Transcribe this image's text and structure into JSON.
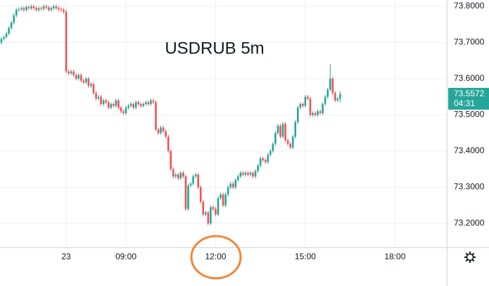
{
  "chart_data": {
    "type": "candlestick",
    "title": "USDRUB 5m",
    "open": [
      73.7,
      73.71,
      73.715,
      73.725,
      73.74,
      73.755,
      73.775,
      73.79,
      73.792,
      73.795,
      73.79,
      73.798,
      73.795,
      73.8,
      73.795,
      73.79,
      73.795,
      73.793,
      73.8,
      73.797,
      73.79,
      73.795,
      73.8,
      73.795,
      73.792,
      73.79,
      73.785,
      73.62,
      73.615,
      73.62,
      73.61,
      73.6,
      73.61,
      73.595,
      73.59,
      73.6,
      73.58,
      73.585,
      73.56,
      73.545,
      73.55,
      73.53,
      73.54,
      73.535,
      73.52,
      73.53,
      73.525,
      73.54,
      73.52,
      73.51,
      73.505,
      73.52,
      73.525,
      73.53,
      73.52,
      73.535,
      73.53,
      73.525,
      73.53,
      73.535,
      73.53,
      73.54,
      73.535,
      73.46,
      73.45,
      73.465,
      73.455,
      73.44,
      73.4,
      73.35,
      73.33,
      73.335,
      73.325,
      73.34,
      73.33,
      73.24,
      73.305,
      73.31,
      73.33,
      73.335,
      73.3,
      73.26,
      73.225,
      73.23,
      73.2,
      73.245,
      73.24,
      73.225,
      73.27,
      73.28,
      73.25,
      73.28,
      73.3,
      73.31,
      73.3,
      73.32,
      73.33,
      73.34,
      73.335,
      73.34,
      73.335,
      73.34,
      73.33,
      73.345,
      73.36,
      73.38,
      73.375,
      73.37,
      73.39,
      73.4,
      73.42,
      73.45,
      73.47,
      73.44,
      73.475,
      73.43,
      73.42,
      73.41,
      73.44,
      73.48,
      73.52,
      73.53,
      73.525,
      73.55,
      73.545,
      73.5,
      73.505,
      73.5,
      73.51,
      73.505,
      73.53,
      73.55,
      73.57,
      73.6,
      73.56,
      73.54,
      73.545
    ],
    "high": [
      73.715,
      73.72,
      73.73,
      73.745,
      73.76,
      73.78,
      73.795,
      73.797,
      73.8,
      73.8,
      73.803,
      73.803,
      73.805,
      73.805,
      73.8,
      73.8,
      73.8,
      73.805,
      73.805,
      73.802,
      73.8,
      73.805,
      73.805,
      73.8,
      73.797,
      73.795,
      73.79,
      73.625,
      73.625,
      73.625,
      73.615,
      73.615,
      73.615,
      73.6,
      73.605,
      73.605,
      73.59,
      73.59,
      73.565,
      73.555,
      73.555,
      73.545,
      73.545,
      73.54,
      73.535,
      73.535,
      73.545,
      73.545,
      73.525,
      73.515,
      73.525,
      73.53,
      73.535,
      73.535,
      73.54,
      73.54,
      73.535,
      73.535,
      73.54,
      73.54,
      73.545,
      73.545,
      73.54,
      73.465,
      73.47,
      73.47,
      73.46,
      73.445,
      73.405,
      73.355,
      73.34,
      73.34,
      73.345,
      73.345,
      73.335,
      73.31,
      73.315,
      73.335,
      73.34,
      73.34,
      73.305,
      73.265,
      73.235,
      73.235,
      73.25,
      73.25,
      73.245,
      73.275,
      73.285,
      73.285,
      73.285,
      73.305,
      73.315,
      73.315,
      73.325,
      73.335,
      73.345,
      73.345,
      73.345,
      73.345,
      73.345,
      73.345,
      73.35,
      73.365,
      73.385,
      73.385,
      73.38,
      73.395,
      73.405,
      73.425,
      73.455,
      73.475,
      73.475,
      73.48,
      73.48,
      73.435,
      73.425,
      73.445,
      73.485,
      73.525,
      73.535,
      73.535,
      73.555,
      73.555,
      73.55,
      73.51,
      73.51,
      73.515,
      73.515,
      73.535,
      73.555,
      73.575,
      73.64,
      73.605,
      73.565,
      73.55,
      73.565
    ],
    "low": [
      73.695,
      73.705,
      73.71,
      73.72,
      73.735,
      73.75,
      73.77,
      73.785,
      73.787,
      73.785,
      73.785,
      73.79,
      73.79,
      73.79,
      73.785,
      73.785,
      73.788,
      73.788,
      73.792,
      73.785,
      73.785,
      73.79,
      73.79,
      73.787,
      73.785,
      73.78,
      73.615,
      73.61,
      73.61,
      73.605,
      73.595,
      73.595,
      73.59,
      73.585,
      73.585,
      73.575,
      73.575,
      73.555,
      73.54,
      73.54,
      73.525,
      73.525,
      73.53,
      73.515,
      73.515,
      73.52,
      73.52,
      73.515,
      73.505,
      73.5,
      73.5,
      73.515,
      73.52,
      73.515,
      73.515,
      73.525,
      73.52,
      73.52,
      73.525,
      73.525,
      73.525,
      73.53,
      73.455,
      73.445,
      73.445,
      73.45,
      73.435,
      73.395,
      73.345,
      73.325,
      73.325,
      73.32,
      73.32,
      73.325,
      73.235,
      73.235,
      73.3,
      73.305,
      73.325,
      73.295,
      73.255,
      73.22,
      73.22,
      73.195,
      73.195,
      73.235,
      73.22,
      73.22,
      73.265,
      73.245,
      73.245,
      73.275,
      73.295,
      73.295,
      73.295,
      73.315,
      73.325,
      73.33,
      73.33,
      73.33,
      73.33,
      73.325,
      73.325,
      73.34,
      73.355,
      73.37,
      73.365,
      73.365,
      73.385,
      73.395,
      73.415,
      73.445,
      73.435,
      73.435,
      73.425,
      73.415,
      73.405,
      73.405,
      73.435,
      73.475,
      73.515,
      73.52,
      73.52,
      73.54,
      73.495,
      73.495,
      73.495,
      73.495,
      73.5,
      73.5,
      73.525,
      73.545,
      73.565,
      73.555,
      73.535,
      73.535,
      73.535
    ],
    "close": [
      73.71,
      73.715,
      73.725,
      73.74,
      73.755,
      73.775,
      73.79,
      73.792,
      73.795,
      73.79,
      73.798,
      73.795,
      73.8,
      73.795,
      73.79,
      73.795,
      73.793,
      73.8,
      73.797,
      73.79,
      73.795,
      73.8,
      73.795,
      73.792,
      73.79,
      73.785,
      73.62,
      73.615,
      73.62,
      73.61,
      73.6,
      73.61,
      73.595,
      73.59,
      73.6,
      73.58,
      73.585,
      73.56,
      73.545,
      73.55,
      73.53,
      73.54,
      73.535,
      73.52,
      73.53,
      73.525,
      73.54,
      73.52,
      73.51,
      73.505,
      73.52,
      73.525,
      73.53,
      73.52,
      73.535,
      73.53,
      73.525,
      73.53,
      73.535,
      73.53,
      73.54,
      73.535,
      73.46,
      73.45,
      73.465,
      73.455,
      73.44,
      73.4,
      73.35,
      73.33,
      73.335,
      73.325,
      73.34,
      73.33,
      73.24,
      73.305,
      73.31,
      73.33,
      73.335,
      73.3,
      73.26,
      73.225,
      73.23,
      73.2,
      73.245,
      73.24,
      73.225,
      73.27,
      73.28,
      73.25,
      73.28,
      73.3,
      73.31,
      73.3,
      73.32,
      73.33,
      73.34,
      73.335,
      73.34,
      73.335,
      73.34,
      73.33,
      73.345,
      73.36,
      73.38,
      73.375,
      73.37,
      73.39,
      73.4,
      73.42,
      73.45,
      73.47,
      73.44,
      73.475,
      73.43,
      73.42,
      73.41,
      73.44,
      73.48,
      73.52,
      73.53,
      73.525,
      73.55,
      73.545,
      73.5,
      73.505,
      73.5,
      73.51,
      73.505,
      73.53,
      73.55,
      73.57,
      73.6,
      73.56,
      73.54,
      73.545,
      73.5572
    ],
    "up_color": "#26a69a",
    "down_color": "#ef5350",
    "countdown": "04:31",
    "xlim": [
      -0.56,
      178.8
    ],
    "xticks": [
      {
        "value": 26,
        "label": "23"
      },
      {
        "value": 50,
        "label": "09:00"
      },
      {
        "value": 86,
        "label": "12:00"
      },
      {
        "value": 122,
        "label": "15:00"
      },
      {
        "value": 158,
        "label": "18:00"
      }
    ],
    "ylim": [
      73.134,
      73.8175
    ],
    "yticks": [
      {
        "value": 73.2,
        "label": "73.2000"
      },
      {
        "value": 73.3,
        "label": "73.3000"
      },
      {
        "value": 73.4,
        "label": "73.4000"
      },
      {
        "value": 73.5,
        "label": "73.5000"
      },
      {
        "value": 73.6,
        "label": "73.6000"
      },
      {
        "value": 73.7,
        "label": "73.7000"
      },
      {
        "value": 73.8,
        "label": "73.8000"
      }
    ],
    "grid": true
  }
}
